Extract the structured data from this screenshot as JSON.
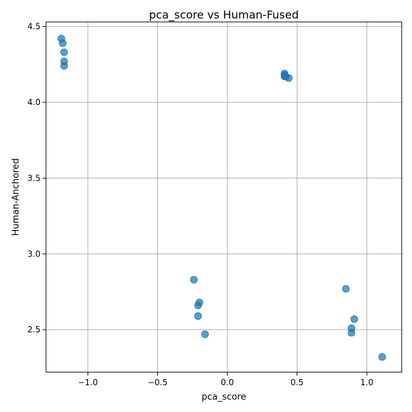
{
  "chart_data": {
    "type": "scatter",
    "title": "pca_score vs Human-Fused",
    "xlabel": "pca_score",
    "ylabel": "Human-Anchored",
    "xlim": [
      -1.3,
      1.25
    ],
    "ylim": [
      2.22,
      4.53
    ],
    "xticks": [
      -1.0,
      -0.5,
      0.0,
      0.5,
      1.0
    ],
    "xtick_labels": [
      "−1.0",
      "−0.5",
      "0.0",
      "0.5",
      "1.0"
    ],
    "yticks": [
      2.5,
      3.0,
      3.5,
      4.0,
      4.5
    ],
    "ytick_labels": [
      "2.5",
      "3.0",
      "3.5",
      "4.0",
      "4.5"
    ],
    "grid": true,
    "color": "#1f77b4",
    "points": [
      {
        "x": -1.19,
        "y": 4.42
      },
      {
        "x": -1.18,
        "y": 4.39
      },
      {
        "x": -1.17,
        "y": 4.33
      },
      {
        "x": -1.17,
        "y": 4.27
      },
      {
        "x": -1.17,
        "y": 4.24
      },
      {
        "x": 0.41,
        "y": 4.18
      },
      {
        "x": 0.41,
        "y": 4.19
      },
      {
        "x": 0.41,
        "y": 4.17
      },
      {
        "x": 0.42,
        "y": 4.17
      },
      {
        "x": 0.44,
        "y": 4.16
      },
      {
        "x": -0.24,
        "y": 2.83
      },
      {
        "x": -0.2,
        "y": 2.68
      },
      {
        "x": -0.21,
        "y": 2.66
      },
      {
        "x": -0.21,
        "y": 2.59
      },
      {
        "x": -0.16,
        "y": 2.47
      },
      {
        "x": 0.85,
        "y": 2.77
      },
      {
        "x": 0.91,
        "y": 2.57
      },
      {
        "x": 0.89,
        "y": 2.51
      },
      {
        "x": 0.89,
        "y": 2.48
      },
      {
        "x": 1.11,
        "y": 2.32
      }
    ]
  }
}
